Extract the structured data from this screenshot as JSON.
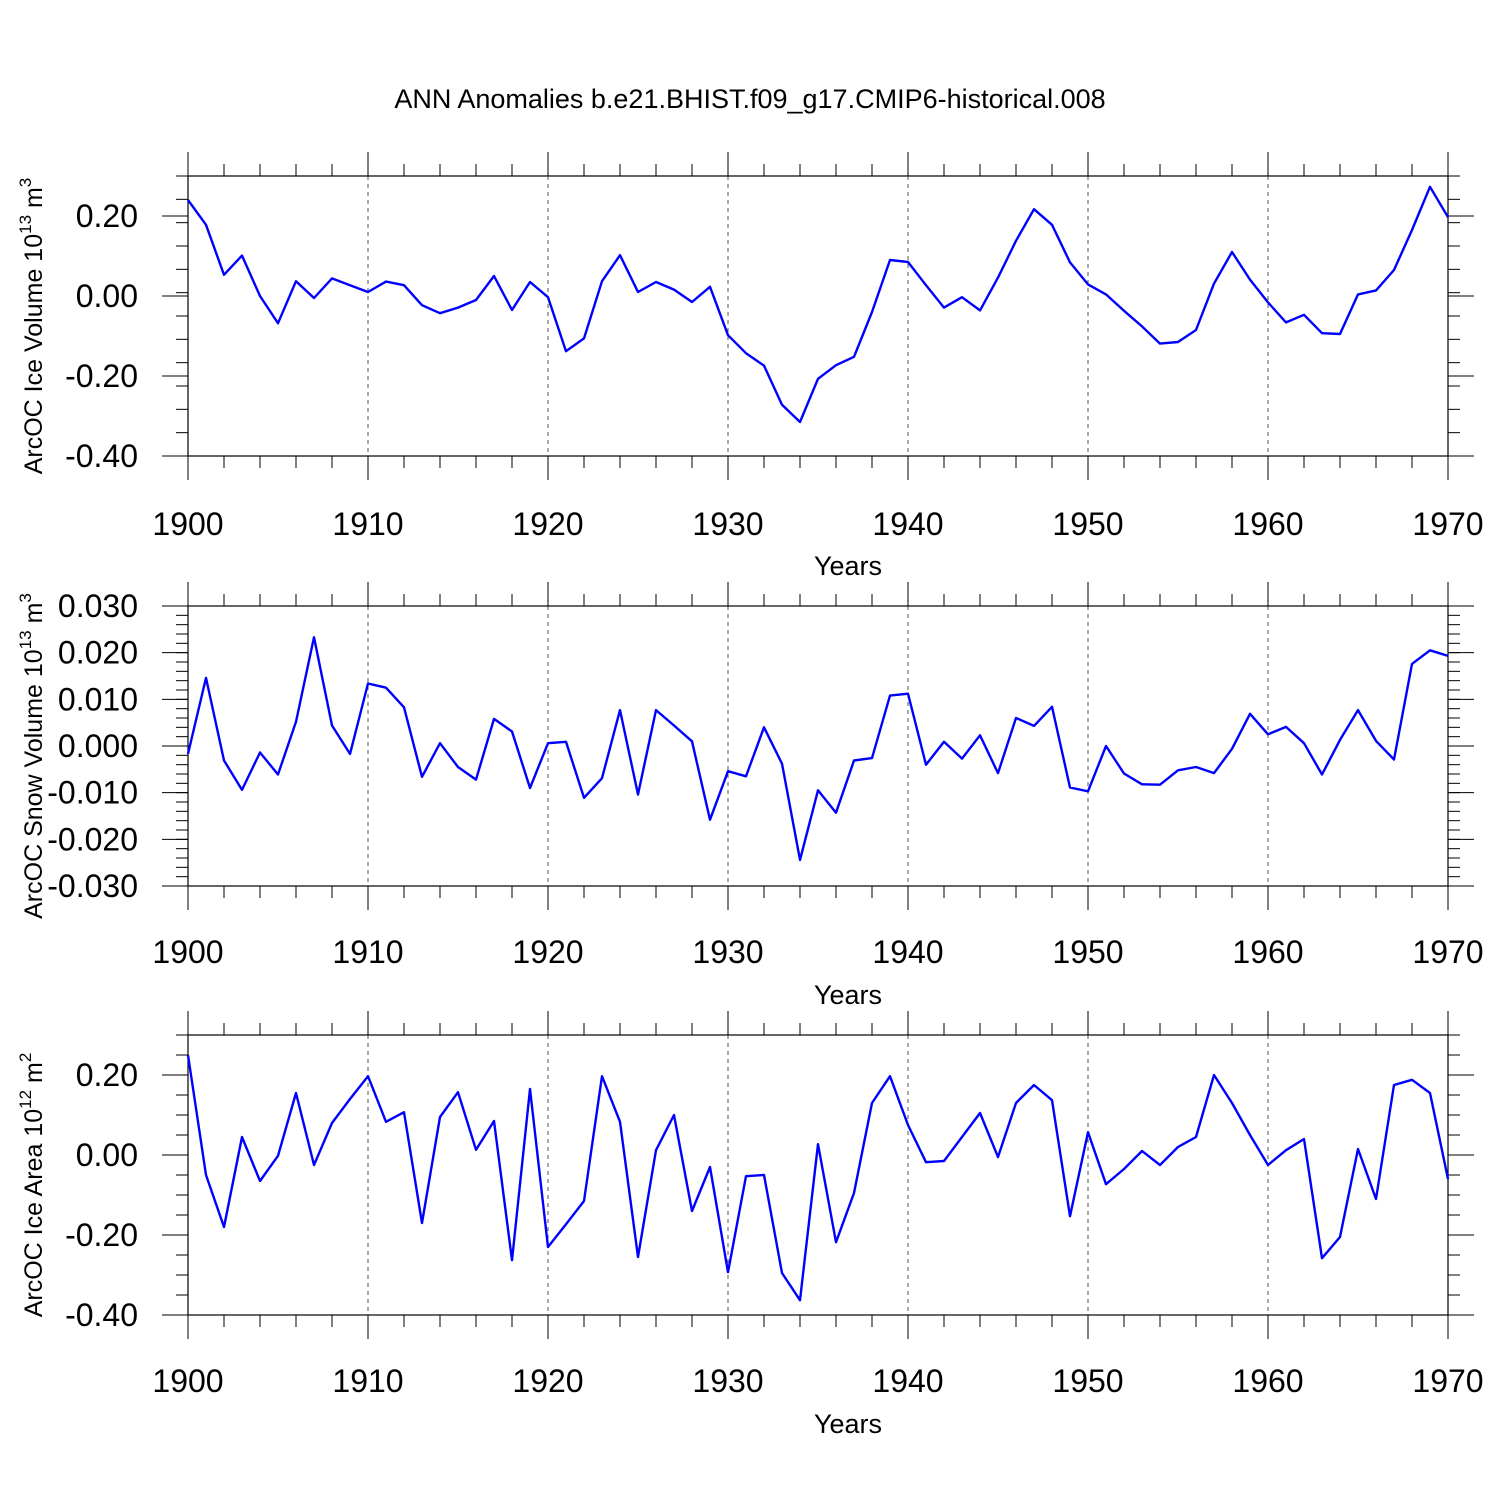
{
  "figure": {
    "title": "ANN Anomalies b.e21.BHIST.f09_g17.CMIP6-historical.008"
  },
  "colors": {
    "line": "#0000ff",
    "axis": "#000000",
    "grid": "#555555"
  },
  "chart_data": [
    {
      "type": "line",
      "ylabel": "ArcOC Ice Volume 10",
      "ylabel_exp": "13",
      "ylabel_unit": "m",
      "ylabel_unit_exp": "3",
      "xlabel": "Years",
      "xlim": [
        1900,
        1970
      ],
      "ylim": [
        -0.4,
        0.3
      ],
      "yticks": [
        -0.4,
        -0.2,
        0.0,
        0.2
      ],
      "ytick_labels": [
        "-0.40",
        "-0.20",
        "0.00",
        "0.20"
      ],
      "xticks": [
        1900,
        1910,
        1920,
        1930,
        1940,
        1950,
        1960,
        1970
      ],
      "xtick_labels": [
        "1900",
        "1910",
        "1920",
        "1930",
        "1940",
        "1950",
        "1960",
        "1970"
      ],
      "x_start": 1900,
      "values": [
        0.24,
        0.178,
        0.053,
        0.101,
        0.0,
        -0.068,
        0.037,
        -0.005,
        0.044,
        0.027,
        0.01,
        0.036,
        0.027,
        -0.023,
        -0.043,
        -0.029,
        -0.01,
        0.05,
        -0.035,
        0.035,
        -0.003,
        -0.138,
        -0.106,
        0.037,
        0.102,
        0.01,
        0.035,
        0.016,
        -0.015,
        0.023,
        -0.098,
        -0.143,
        -0.174,
        -0.272,
        -0.315,
        -0.207,
        -0.173,
        -0.152,
        -0.04,
        0.09,
        0.085,
        0.027,
        -0.029,
        -0.003,
        -0.036,
        0.046,
        0.138,
        0.217,
        0.178,
        0.084,
        0.029,
        0.004,
        -0.037,
        -0.076,
        -0.119,
        -0.115,
        -0.085,
        0.031,
        0.11,
        0.041,
        -0.016,
        -0.066,
        -0.047,
        -0.093,
        -0.095,
        0.004,
        0.014,
        0.065,
        0.165,
        0.273,
        0.197
      ]
    },
    {
      "type": "line",
      "ylabel": "ArcOC Snow Volume 10",
      "ylabel_exp": "13",
      "ylabel_unit": "m",
      "ylabel_unit_exp": "3",
      "xlabel": "Years",
      "xlim": [
        1900,
        1970
      ],
      "ylim": [
        -0.03,
        0.03
      ],
      "yticks": [
        -0.03,
        -0.02,
        -0.01,
        0.0,
        0.01,
        0.02,
        0.03
      ],
      "ytick_labels": [
        "-0.030",
        "-0.020",
        "-0.010",
        "0.000",
        "0.010",
        "0.020",
        "0.030"
      ],
      "xticks": [
        1900,
        1910,
        1920,
        1930,
        1940,
        1950,
        1960,
        1970
      ],
      "xtick_labels": [
        "1900",
        "1910",
        "1920",
        "1930",
        "1940",
        "1950",
        "1960",
        "1970"
      ],
      "x_start": 1900,
      "values": [
        -0.0017,
        0.0146,
        -0.0031,
        -0.0094,
        -0.0014,
        -0.0061,
        0.0052,
        0.0233,
        0.0044,
        -0.0017,
        0.0134,
        0.0125,
        0.0083,
        -0.0066,
        0.0006,
        -0.0045,
        -0.0072,
        0.0058,
        0.0031,
        -0.009,
        0.0006,
        0.0009,
        -0.0111,
        -0.0069,
        0.0077,
        -0.0104,
        0.0077,
        0.0044,
        0.001,
        -0.0158,
        -0.0054,
        -0.0065,
        0.004,
        -0.0038,
        -0.0244,
        -0.0095,
        -0.0143,
        -0.0031,
        -0.0026,
        0.0108,
        0.0112,
        -0.004,
        0.0009,
        -0.0027,
        0.0023,
        -0.0058,
        0.006,
        0.0043,
        0.0084,
        -0.0089,
        -0.0097,
        0.0,
        -0.0059,
        -0.0082,
        -0.0083,
        -0.0052,
        -0.0045,
        -0.0058,
        -0.0006,
        0.0069,
        0.0025,
        0.0041,
        0.0006,
        -0.0061,
        0.0013,
        0.0077,
        0.0011,
        -0.0029,
        0.0176,
        0.0205,
        0.0193
      ]
    },
    {
      "type": "line",
      "ylabel": "ArcOC Ice Area 10",
      "ylabel_exp": "12",
      "ylabel_unit": "m",
      "ylabel_unit_exp": "2",
      "xlabel": "Years",
      "xlim": [
        1900,
        1970
      ],
      "ylim": [
        -0.4,
        0.3
      ],
      "yticks": [
        -0.4,
        -0.2,
        0.0,
        0.2
      ],
      "ytick_labels": [
        "-0.40",
        "-0.20",
        "0.00",
        "0.20"
      ],
      "xticks": [
        1900,
        1910,
        1920,
        1930,
        1940,
        1950,
        1960,
        1970
      ],
      "xtick_labels": [
        "1900",
        "1910",
        "1920",
        "1930",
        "1940",
        "1950",
        "1960",
        "1970"
      ],
      "x_start": 1900,
      "values": [
        0.25,
        -0.05,
        -0.18,
        0.045,
        -0.065,
        -0.002,
        0.155,
        -0.025,
        0.08,
        0.14,
        0.197,
        0.083,
        0.107,
        -0.17,
        0.095,
        0.157,
        0.013,
        0.085,
        -0.263,
        0.165,
        -0.23,
        -0.173,
        -0.115,
        0.197,
        0.083,
        -0.255,
        0.012,
        0.1,
        -0.14,
        -0.03,
        -0.293,
        -0.053,
        -0.05,
        -0.295,
        -0.363,
        0.027,
        -0.218,
        -0.095,
        0.13,
        0.197,
        0.075,
        -0.018,
        -0.015,
        0.045,
        0.105,
        -0.005,
        0.13,
        0.175,
        0.137,
        -0.153,
        0.057,
        -0.073,
        -0.035,
        0.01,
        -0.025,
        0.02,
        0.045,
        0.2,
        0.13,
        0.05,
        -0.025,
        0.012,
        0.04,
        -0.258,
        -0.205,
        0.015,
        -0.11,
        0.175,
        0.188,
        0.155,
        -0.06
      ]
    }
  ]
}
